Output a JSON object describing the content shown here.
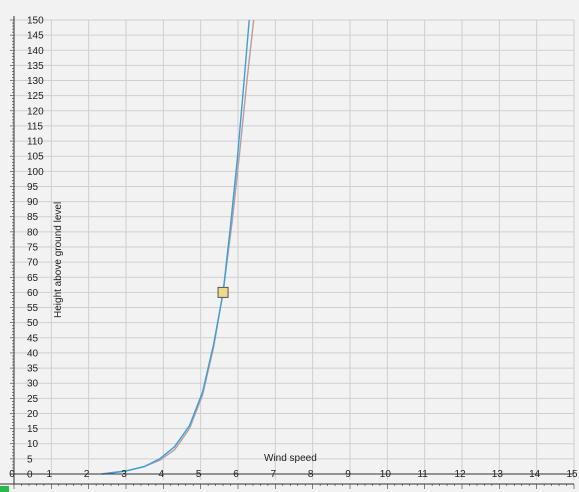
{
  "chart_data": {
    "type": "line",
    "title": "",
    "xlabel": "Wind speed",
    "ylabel": "Height above ground level",
    "xlim": [
      0,
      15
    ],
    "ylim": [
      0,
      150
    ],
    "x_ticks": [
      0,
      1,
      2,
      3,
      4,
      5,
      6,
      7,
      8,
      9,
      10,
      11,
      12,
      13,
      14,
      15
    ],
    "x_tick_labels": [
      "0",
      "1",
      "2",
      "3",
      "4",
      "5",
      "6",
      "7",
      "8",
      "9",
      "10",
      "11",
      "12",
      "13",
      "14",
      "15"
    ],
    "y_ticks": [
      0,
      5,
      10,
      15,
      20,
      25,
      30,
      35,
      40,
      45,
      50,
      55,
      60,
      65,
      70,
      75,
      80,
      85,
      90,
      95,
      100,
      105,
      110,
      115,
      120,
      125,
      130,
      135,
      140,
      145,
      150
    ],
    "y_tick_labels": [
      "0",
      "5",
      "10",
      "15",
      "20",
      "25",
      "30",
      "35",
      "40",
      "45",
      "50",
      "55",
      "60",
      "65",
      "70",
      "75",
      "80",
      "85",
      "90",
      "95",
      "100",
      "105",
      "110",
      "115",
      "120",
      "125",
      "130",
      "135",
      "140",
      "145",
      "150"
    ],
    "grid": true,
    "series": [
      {
        "color": "#c09aa0",
        "x": [
          2.35,
          3.0,
          3.5,
          3.9,
          4.3,
          4.7,
          5.05,
          5.35,
          5.6,
          5.85,
          6.05,
          6.25,
          6.42
        ],
        "y": [
          0,
          1,
          2.5,
          4.5,
          8,
          15,
          26,
          42,
          60,
          84,
          107,
          131,
          150
        ]
      },
      {
        "color": "#3aa0d8",
        "x": [
          2.35,
          3.0,
          3.5,
          3.9,
          4.3,
          4.7,
          5.05,
          5.35,
          5.6,
          5.8,
          5.98,
          6.15,
          6.3
        ],
        "y": [
          0,
          1,
          2.5,
          5,
          9,
          16,
          27,
          43,
          60,
          82,
          104,
          128,
          150
        ]
      }
    ],
    "marker": {
      "x": 5.6,
      "y": 60,
      "fill": "#f0d98a",
      "stroke": "#555555"
    },
    "colors": {
      "background": "#f2f2f2",
      "grid": "#cfcfcf",
      "axis": "#333333",
      "corner_indicator": "#2db84a"
    }
  }
}
